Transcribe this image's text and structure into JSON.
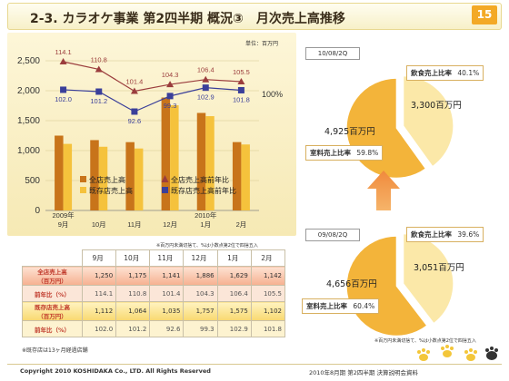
{
  "header": {
    "title": "2-3. カラオケ事業 第2四半期 概況③　月次売上高推移",
    "page_number": "15"
  },
  "unit_label": "単位：百万円",
  "chart_data": {
    "type": "bar",
    "categories": [
      "2009年\n9月",
      "10月",
      "11月",
      "12月",
      "2010年\n1月",
      "2月"
    ],
    "category_lines": [
      [
        "2009年",
        "9月"
      ],
      [
        "10月"
      ],
      [
        "11月"
      ],
      [
        "12月"
      ],
      [
        "2010年",
        "1月"
      ],
      [
        "2月"
      ]
    ],
    "series": [
      {
        "name": "全店売上高",
        "values": [
          1250,
          1175,
          1141,
          1886,
          1629,
          1142
        ],
        "color": "#c8741a"
      },
      {
        "name": "既存店売上高",
        "values": [
          1112,
          1064,
          1035,
          1757,
          1575,
          1102
        ],
        "color": "#f5c23c"
      }
    ],
    "line_series": [
      {
        "name": "全店売上高前年比",
        "values": [
          114.1,
          110.8,
          101.4,
          104.3,
          106.4,
          105.5
        ],
        "color": "#9b3d3d",
        "marker": "triangle"
      },
      {
        "name": "既存店売上高前年比",
        "values": [
          102.0,
          101.2,
          92.6,
          99.3,
          102.9,
          101.8
        ],
        "color": "#3a3f9a",
        "marker": "square"
      }
    ],
    "ylim": [
      0,
      2500
    ],
    "yticks": [
      "0",
      "500",
      "1,000",
      "1,500",
      "2,000",
      "2,500"
    ],
    "secondary_label": "100%",
    "grid": true,
    "legend_position": "bottom-right"
  },
  "table": {
    "note": "※百万円未満切捨て、%は小数点第2位で四捨五入",
    "headers": [
      "9月",
      "10月",
      "11月",
      "12月",
      "1月",
      "2月"
    ],
    "rows": [
      {
        "label_line1": "全店売上高",
        "label_line2": "（百万円）",
        "values": [
          "1,250",
          "1,175",
          "1,141",
          "1,886",
          "1,629",
          "1,142"
        ]
      },
      {
        "label": "前年比（%）",
        "values": [
          "114.1",
          "110.8",
          "101.4",
          "104.3",
          "106.4",
          "105.5"
        ]
      },
      {
        "label_line1": "既存店売上高",
        "label_line2": "（百万円）",
        "values": [
          "1,112",
          "1,064",
          "1,035",
          "1,757",
          "1,575",
          "1,102"
        ]
      },
      {
        "label": "前年比（%）",
        "values": [
          "102.0",
          "101.2",
          "92.6",
          "99.3",
          "102.9",
          "101.8"
        ]
      }
    ],
    "footnote": "※既存店は13ヶ月経過店舗"
  },
  "pie_top": {
    "period": "10/08/2Q",
    "food_label": "飲食売上比率",
    "food_pct": "40.1%",
    "food_value": "3,300百万円",
    "food_fraction": 0.401,
    "room_label": "室料売上比率",
    "room_pct": "59.8%",
    "room_value": "4,925百万円"
  },
  "pie_bottom": {
    "period": "09/08/2Q",
    "food_label": "飲食売上比率",
    "food_pct": "39.6%",
    "food_value": "3,051百万円",
    "food_fraction": 0.396,
    "room_label": "室料売上比率",
    "room_pct": "60.4%",
    "room_value": "4,656百万円"
  },
  "pie_note": "※百万円未満切捨て、%は小数点第2位で四捨五入",
  "footer": {
    "copyright": "Copyright 2010 KOSHIDAKA Co., LTD. All Rights Reserved",
    "right": "2010年8月期 第2四半期 決算説明会資料"
  },
  "colors": {
    "accent": "#f3a926",
    "bar_all": "#c8741a",
    "bar_existing": "#f5c23c",
    "pie_light": "#fbe8a8",
    "pie_dark": "#f3b43a"
  }
}
